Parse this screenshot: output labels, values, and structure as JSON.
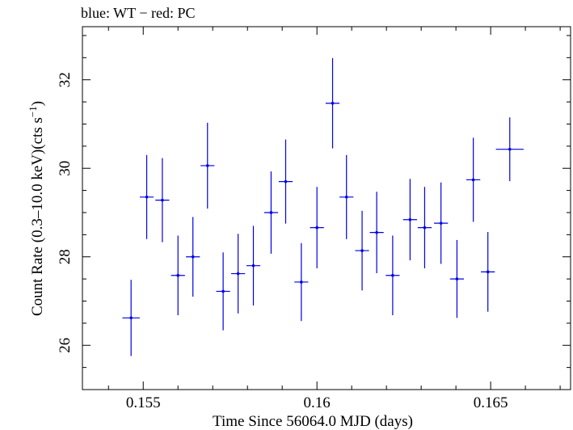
{
  "chart_data": {
    "type": "scatter",
    "title": "blue: WT − red: PC",
    "xlabel": "Time Since 56064.0 MJD (days)",
    "ylabel_main": "Count Rate (0.3–10.0 keV)(cts s",
    "ylabel_sup": "−1",
    "ylabel_end": ")",
    "xlim": [
      0.15325,
      0.1673
    ],
    "ylim": [
      25.0,
      33.2
    ],
    "x_ticks": [
      0.155,
      0.16,
      0.165
    ],
    "x_tick_labels": [
      "0.155",
      "0.16",
      "0.165"
    ],
    "y_ticks": [
      26,
      28,
      30,
      32
    ],
    "y_tick_labels": [
      "26",
      "28",
      "30",
      "32"
    ],
    "grid": false,
    "series": [
      {
        "color": "#0000e6",
        "points": [
          {
            "x": 0.15465,
            "y": 26.62,
            "xerr": 0.00025,
            "yerr": 0.86
          },
          {
            "x": 0.1551,
            "y": 29.35,
            "xerr": 0.0002,
            "yerr": 0.95
          },
          {
            "x": 0.15555,
            "y": 29.28,
            "xerr": 0.0002,
            "yerr": 0.95
          },
          {
            "x": 0.156,
            "y": 27.58,
            "xerr": 0.0002,
            "yerr": 0.9
          },
          {
            "x": 0.15643,
            "y": 28.0,
            "xerr": 0.0002,
            "yerr": 0.9
          },
          {
            "x": 0.15685,
            "y": 30.06,
            "xerr": 0.0002,
            "yerr": 0.97
          },
          {
            "x": 0.1573,
            "y": 27.22,
            "xerr": 0.0002,
            "yerr": 0.88
          },
          {
            "x": 0.15773,
            "y": 27.62,
            "xerr": 0.0002,
            "yerr": 0.9
          },
          {
            "x": 0.15817,
            "y": 27.8,
            "xerr": 0.0002,
            "yerr": 0.9
          },
          {
            "x": 0.15868,
            "y": 29.0,
            "xerr": 0.0002,
            "yerr": 0.93
          },
          {
            "x": 0.1591,
            "y": 29.7,
            "xerr": 0.0002,
            "yerr": 0.95
          },
          {
            "x": 0.15955,
            "y": 27.43,
            "xerr": 0.0002,
            "yerr": 0.88
          },
          {
            "x": 0.16,
            "y": 28.66,
            "xerr": 0.0002,
            "yerr": 0.92
          },
          {
            "x": 0.16045,
            "y": 31.47,
            "xerr": 0.0002,
            "yerr": 1.02
          },
          {
            "x": 0.16085,
            "y": 29.35,
            "xerr": 0.0002,
            "yerr": 0.95
          },
          {
            "x": 0.1613,
            "y": 28.14,
            "xerr": 0.0002,
            "yerr": 0.9
          },
          {
            "x": 0.16172,
            "y": 28.55,
            "xerr": 0.0002,
            "yerr": 0.92
          },
          {
            "x": 0.16218,
            "y": 27.58,
            "xerr": 0.0002,
            "yerr": 0.9
          },
          {
            "x": 0.16268,
            "y": 28.84,
            "xerr": 0.0002,
            "yerr": 0.92
          },
          {
            "x": 0.1631,
            "y": 28.66,
            "xerr": 0.0002,
            "yerr": 0.92
          },
          {
            "x": 0.16357,
            "y": 28.76,
            "xerr": 0.0002,
            "yerr": 0.92
          },
          {
            "x": 0.16403,
            "y": 27.5,
            "xerr": 0.0002,
            "yerr": 0.88
          },
          {
            "x": 0.1645,
            "y": 29.74,
            "xerr": 0.0002,
            "yerr": 0.95
          },
          {
            "x": 0.16492,
            "y": 27.66,
            "xerr": 0.0002,
            "yerr": 0.9
          },
          {
            "x": 0.16555,
            "y": 30.43,
            "xerr": 0.0004,
            "yerr": 0.72
          }
        ]
      }
    ]
  }
}
